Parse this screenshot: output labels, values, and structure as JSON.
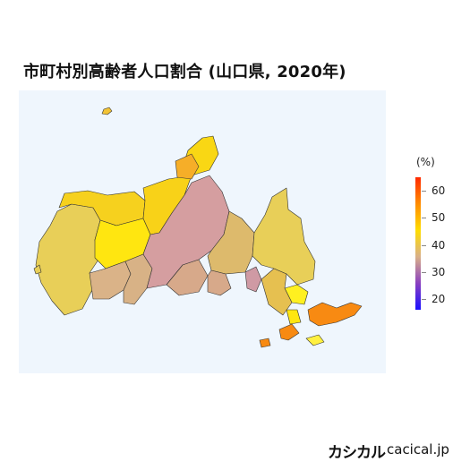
{
  "title": "市町村別高齢者人口割合 (山口県, 2020年)",
  "legend": {
    "unit_label": "(%)",
    "ticks": [
      "60",
      "50",
      "40",
      "30",
      "20"
    ],
    "tick_values": [
      60,
      50,
      40,
      30,
      20
    ],
    "range": [
      16,
      65
    ],
    "colors": [
      "#ff2a00",
      "#ff8c00",
      "#ffdd00",
      "#d9b088",
      "#8a40c0",
      "#1a10ff"
    ]
  },
  "map_colors": {
    "ocean": "#eff6fd",
    "border": "#333333"
  },
  "brand": {
    "logo_text": "カシカル",
    "site": "cacical.jp"
  }
}
